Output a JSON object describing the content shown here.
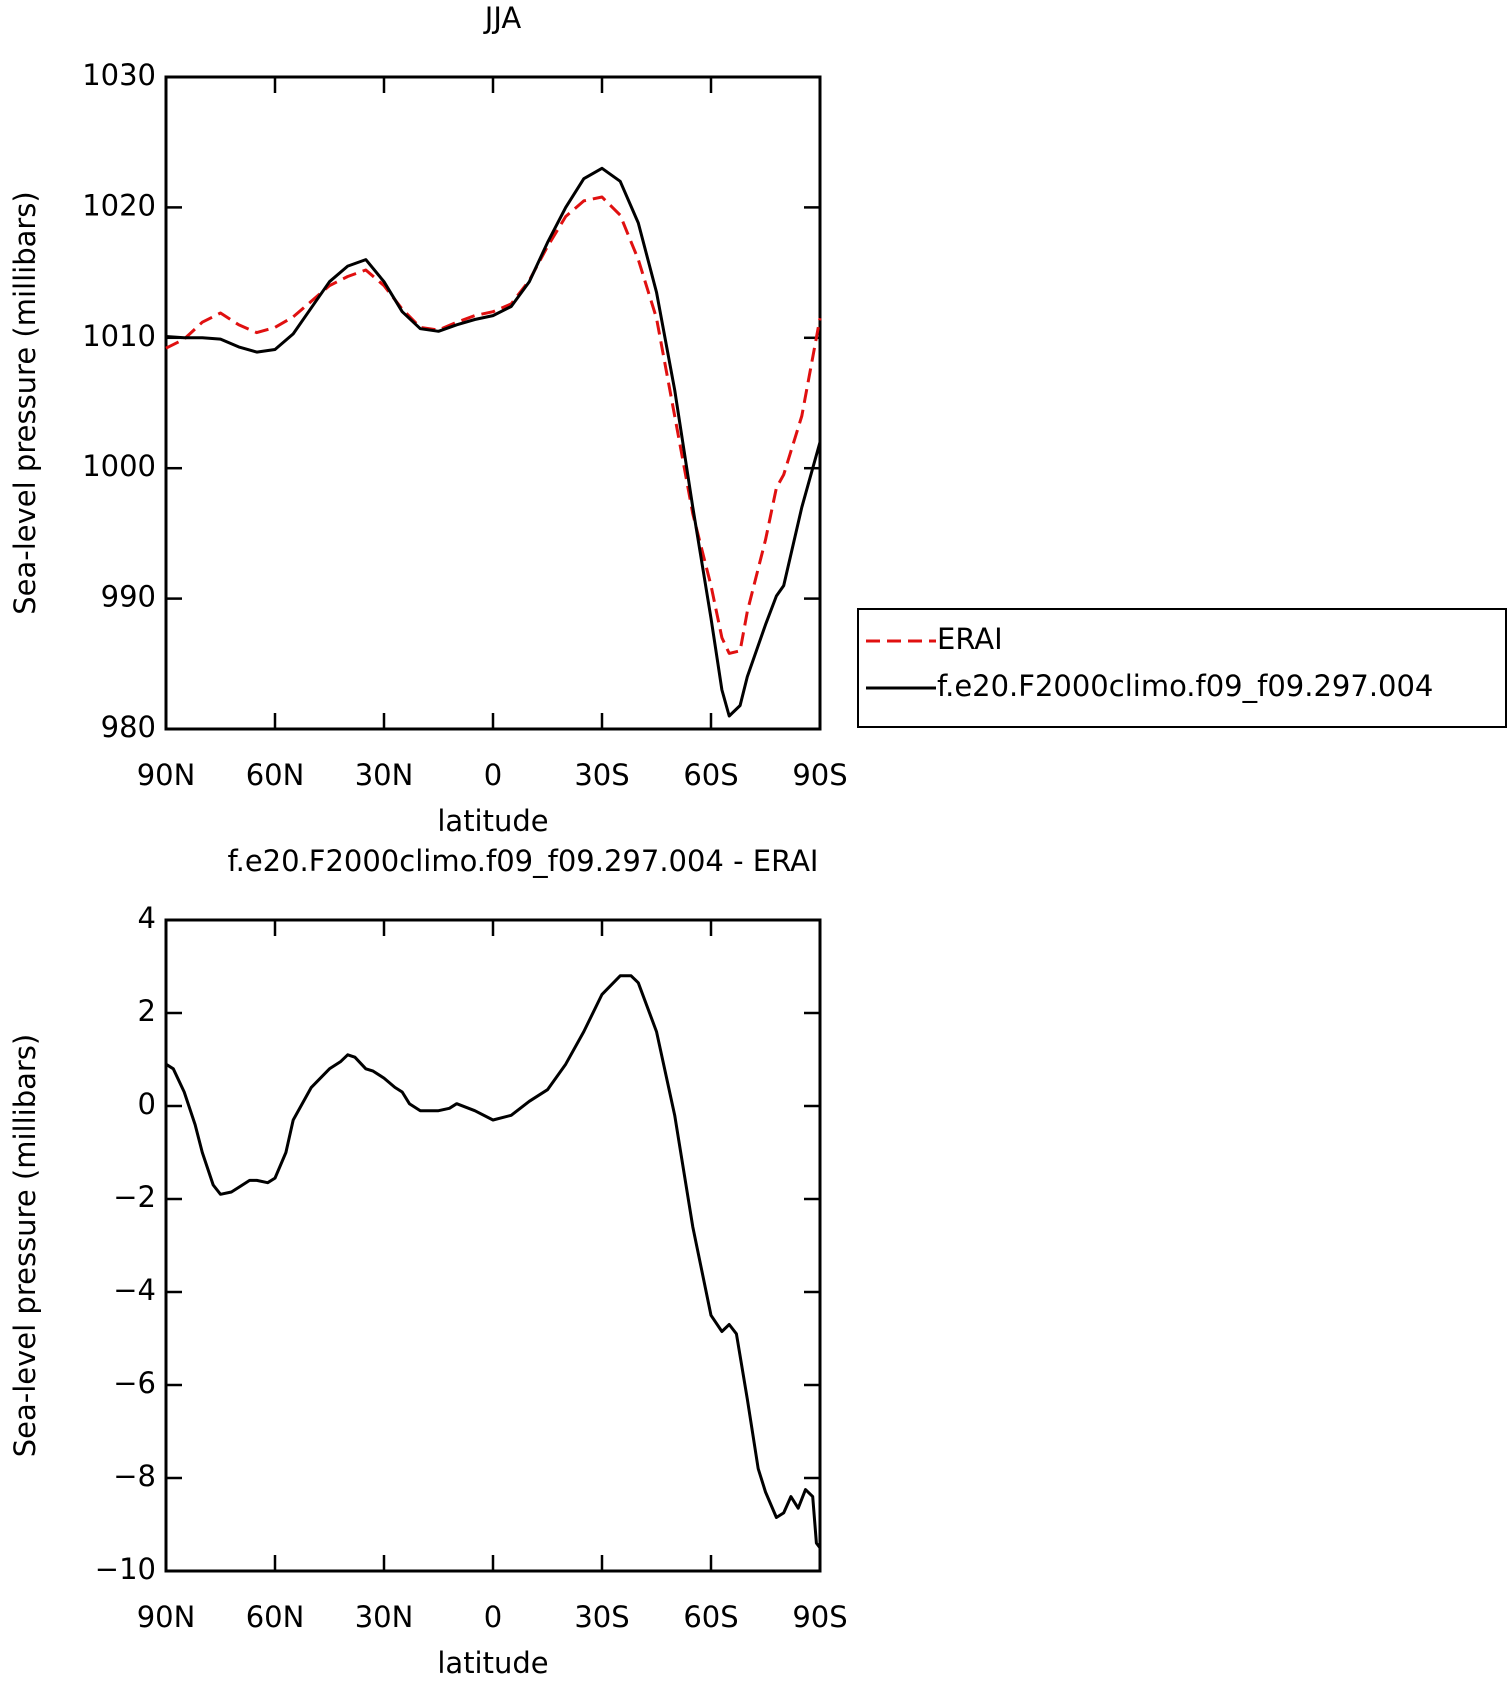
{
  "chart_data": [
    {
      "type": "line",
      "title": "JJA",
      "xlabel": "latitude",
      "ylabel": "Sea-level pressure (millibars)",
      "x": [
        90,
        85,
        80,
        75,
        70,
        65,
        60,
        55,
        50,
        45,
        40,
        35,
        30,
        25,
        20,
        15,
        10,
        5,
        0,
        -5,
        -10,
        -15,
        -20,
        -25,
        -30,
        -35,
        -40,
        -45,
        -50,
        -55,
        -60,
        -63,
        -65,
        -68,
        -70,
        -75,
        -78,
        -80,
        -85,
        -90
      ],
      "series": [
        {
          "name": "ERAI",
          "color": "#e01010",
          "dash": "dashed",
          "values": [
            1009.2,
            1009.9,
            1011.2,
            1011.9,
            1011.0,
            1010.4,
            1010.8,
            1011.6,
            1012.8,
            1014.0,
            1014.7,
            1015.2,
            1014.0,
            1012.2,
            1010.8,
            1010.6,
            1011.2,
            1011.7,
            1012.0,
            1012.6,
            1014.4,
            1017.0,
            1019.3,
            1020.5,
            1020.8,
            1019.4,
            1016.0,
            1011.5,
            1004.0,
            996.5,
            991.0,
            987.0,
            985.8,
            986.0,
            989.0,
            994.5,
            998.5,
            999.5,
            1004.0,
            1011.5
          ]
        },
        {
          "name": "f.e20.F2000climo.f09_f09.297.004",
          "color": "#000000",
          "dash": "solid",
          "values": [
            1010.1,
            1010.0,
            1010.0,
            1009.9,
            1009.3,
            1008.9,
            1009.1,
            1010.3,
            1012.3,
            1014.3,
            1015.5,
            1016.0,
            1014.3,
            1012.0,
            1010.7,
            1010.5,
            1011.0,
            1011.4,
            1011.7,
            1012.4,
            1014.3,
            1017.3,
            1020.0,
            1022.2,
            1023.0,
            1022.0,
            1018.8,
            1013.5,
            1006.0,
            997.0,
            988.5,
            983.0,
            981.0,
            981.8,
            984.0,
            988.0,
            990.2,
            991.0,
            997.0,
            1002.0
          ]
        }
      ],
      "xlim": [
        90,
        -90
      ],
      "xticks": [
        {
          "value": 90,
          "label": "90N"
        },
        {
          "value": 60,
          "label": "60N"
        },
        {
          "value": 30,
          "label": "30N"
        },
        0,
        {
          "value": -30,
          "label": "30S"
        },
        {
          "value": -60,
          "label": "60S"
        },
        {
          "value": -90,
          "label": "90S"
        }
      ],
      "ylim": [
        980,
        1030
      ],
      "yticks": [
        980,
        990,
        1000,
        1010,
        1020,
        1030
      ],
      "legend": "right"
    },
    {
      "type": "line",
      "title": "f.e20.F2000climo.f09_f09.297.004 - ERAI",
      "xlabel": "latitude",
      "ylabel": "Sea-level pressure (millibars)",
      "x": [
        90,
        88,
        85,
        82,
        80,
        77,
        75,
        72,
        70,
        67,
        65,
        62,
        60,
        57,
        55,
        50,
        45,
        42,
        40,
        38,
        35,
        33,
        30,
        27,
        25,
        23,
        20,
        15,
        12,
        10,
        5,
        0,
        -5,
        -10,
        -15,
        -20,
        -25,
        -30,
        -35,
        -38,
        -40,
        -45,
        -50,
        -55,
        -60,
        -63,
        -65,
        -67,
        -70,
        -73,
        -75,
        -78,
        -80,
        -82,
        -84,
        -86,
        -88,
        -89,
        -90
      ],
      "series": [
        {
          "color": "#000000",
          "dash": "solid",
          "values": [
            0.9,
            0.8,
            0.3,
            -0.4,
            -1.0,
            -1.7,
            -1.9,
            -1.85,
            -1.75,
            -1.6,
            -1.6,
            -1.65,
            -1.55,
            -1.0,
            -0.3,
            0.4,
            0.8,
            0.95,
            1.1,
            1.05,
            0.8,
            0.75,
            0.6,
            0.4,
            0.3,
            0.05,
            -0.1,
            -0.1,
            -0.05,
            0.05,
            -0.1,
            -0.3,
            -0.2,
            0.1,
            0.35,
            0.9,
            1.6,
            2.4,
            2.8,
            2.8,
            2.65,
            1.6,
            -0.2,
            -2.6,
            -4.5,
            -4.85,
            -4.7,
            -4.9,
            -6.3,
            -7.8,
            -8.3,
            -8.85,
            -8.75,
            -8.4,
            -8.65,
            -8.25,
            -8.4,
            -9.4,
            -9.5
          ]
        }
      ],
      "xlim": [
        90,
        -90
      ],
      "xticks": [
        {
          "value": 90,
          "label": "90N"
        },
        {
          "value": 60,
          "label": "60N"
        },
        {
          "value": 30,
          "label": "30N"
        },
        0,
        {
          "value": -30,
          "label": "30S"
        },
        {
          "value": -60,
          "label": "60S"
        },
        {
          "value": -90,
          "label": "90S"
        }
      ],
      "ylim": [
        -10,
        4
      ],
      "yticks": [
        {
          "value": -10,
          "label": "−10"
        },
        {
          "value": -8,
          "label": "−8"
        },
        {
          "value": -6,
          "label": "−6"
        },
        {
          "value": -4,
          "label": "−4"
        },
        {
          "value": -2,
          "label": "−2"
        },
        0,
        2,
        4
      ]
    }
  ]
}
